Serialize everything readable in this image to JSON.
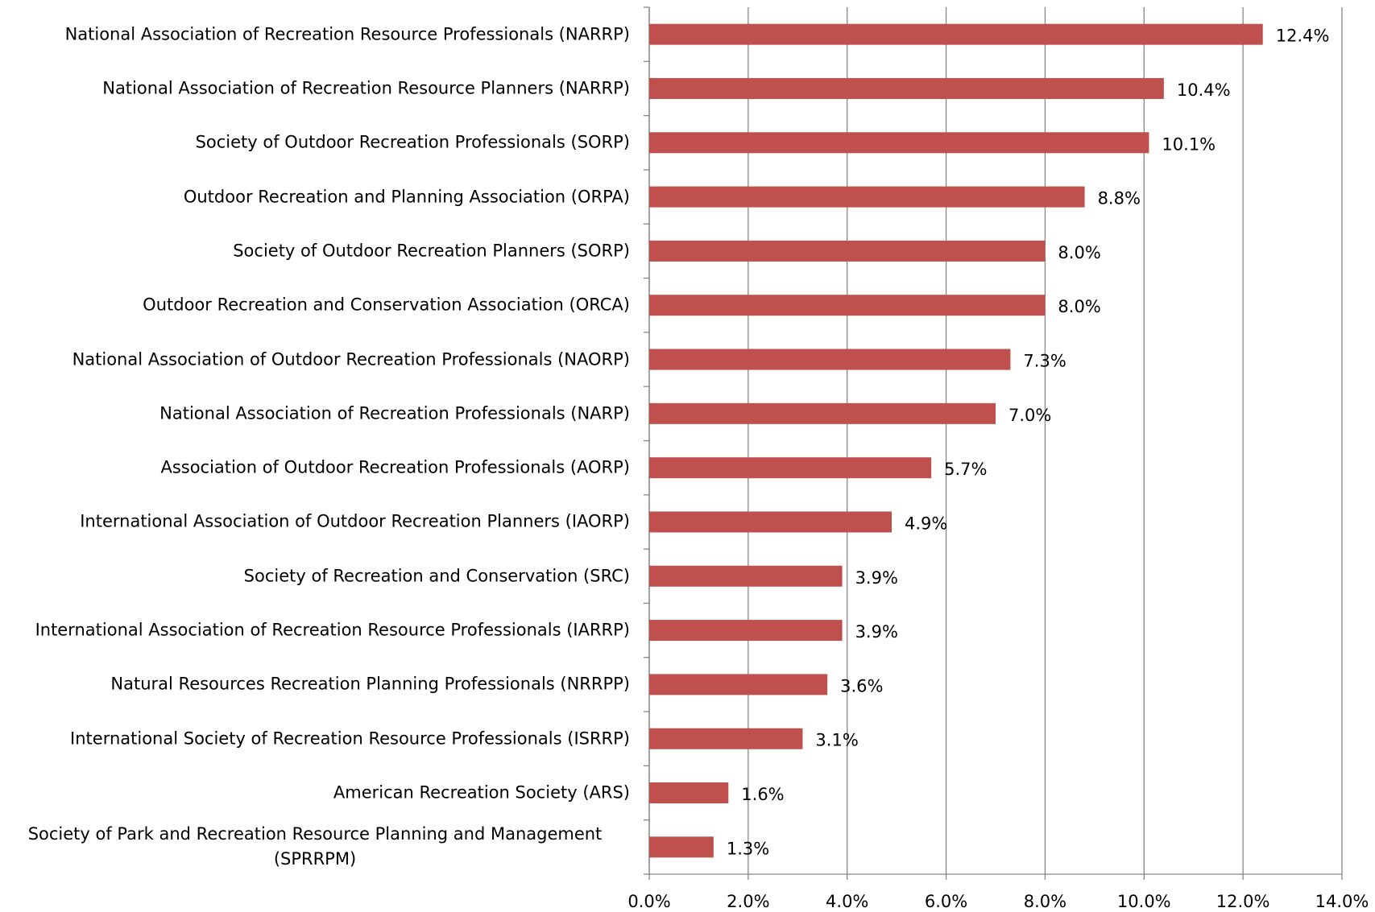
{
  "chart_data": {
    "type": "bar",
    "orientation": "horizontal",
    "categories": [
      "National Association of Recreation Resource Professionals (NARRP)",
      "National Association of Recreation Resource Planners (NARRP)",
      "Society of Outdoor Recreation Professionals (SORP)",
      "Outdoor Recreation and Planning Association (ORPA)",
      "Society of Outdoor Recreation Planners (SORP)",
      "Outdoor Recreation and Conservation Association (ORCA)",
      "National Association of Outdoor Recreation Professionals (NAORP)",
      "National Association of Recreation Professionals (NARP)",
      "Association of Outdoor Recreation Professionals (AORP)",
      "International Association of Outdoor Recreation Planners (IAORP)",
      "Society of Recreation and Conservation (SRC)",
      "International Association of Recreation Resource Professionals (IARRP)",
      "Natural Resources Recreation Planning Professionals (NRRPP)",
      "International Society of Recreation Resource Professionals (ISRRP)",
      "American Recreation Society (ARS)",
      "Society of Park and Recreation Resource Planning and Management (SPRRPM)"
    ],
    "values": [
      12.4,
      10.4,
      10.1,
      8.8,
      8.0,
      8.0,
      7.3,
      7.0,
      5.7,
      4.9,
      3.9,
      3.9,
      3.6,
      3.1,
      1.6,
      1.3
    ],
    "value_labels": [
      "12.4%",
      "10.4%",
      "10.1%",
      "8.8%",
      "8.0%",
      "8.0%",
      "7.3%",
      "7.0%",
      "5.7%",
      "4.9%",
      "3.9%",
      "3.9%",
      "3.6%",
      "3.1%",
      "1.6%",
      "1.3%"
    ],
    "color": "#c0504d",
    "xlim": [
      0,
      14
    ],
    "xticks": [
      {
        "value": 0,
        "label": "0.0%"
      },
      {
        "value": 2,
        "label": "2.0%"
      },
      {
        "value": 4,
        "label": "4.0%"
      },
      {
        "value": 6,
        "label": "6.0%"
      },
      {
        "value": 8,
        "label": "8.0%"
      },
      {
        "value": 10,
        "label": "10.0%"
      },
      {
        "value": 12,
        "label": "12.0%"
      },
      {
        "value": 14,
        "label": "14.0%"
      }
    ],
    "grid": true
  }
}
